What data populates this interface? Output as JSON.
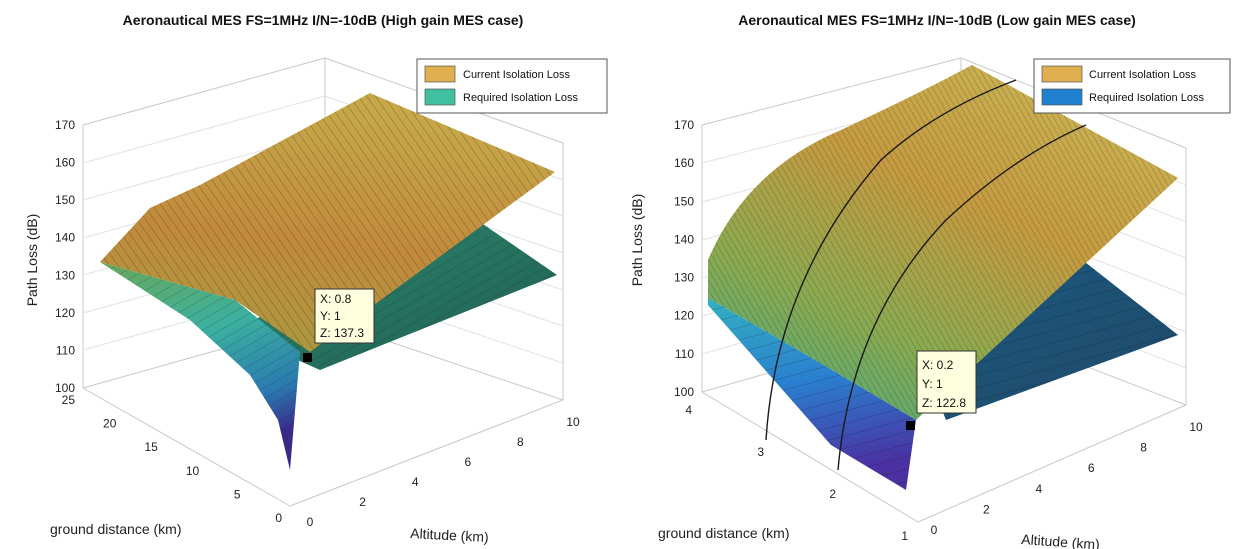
{
  "chart_data": [
    {
      "type": "surface",
      "title": "Aeronautical MES FS=1MHz  I/N=-10dB (High gain MES case)",
      "xlabel": "Altitude (km)",
      "ylabel": "ground distance (km)",
      "zlabel": "Path Loss (dB)",
      "x_ticks": [
        "0",
        "2",
        "4",
        "6",
        "8",
        "10"
      ],
      "y_ticks": [
        "0",
        "5",
        "10",
        "15",
        "20",
        "25"
      ],
      "z_ticks": [
        "100",
        "110",
        "120",
        "130",
        "140",
        "150",
        "160",
        "170"
      ],
      "xlim": [
        0,
        10
      ],
      "ylim": [
        0,
        25
      ],
      "zlim": [
        100,
        170
      ],
      "legend_position": "top-right",
      "series": [
        {
          "name": "Current Isolation Loss",
          "color": "#e0b050"
        },
        {
          "name": "Required Isolation Loss",
          "color": "#40c0a0"
        }
      ],
      "datatip": {
        "lines": [
          "X: 0.8",
          "Y: 1",
          "Z: 137.3"
        ],
        "x": 0.8,
        "y": 1,
        "z": 137.3
      }
    },
    {
      "type": "surface",
      "title": "Aeronautical MES FS=1MHz  I/N=-10dB (Low gain MES case)",
      "xlabel": "Altitude (km)",
      "ylabel": "ground distance (km)",
      "zlabel": "Path Loss (dB)",
      "x_ticks": [
        "0",
        "2",
        "4",
        "6",
        "8",
        "10"
      ],
      "y_ticks": [
        "1",
        "2",
        "3",
        "4"
      ],
      "z_ticks": [
        "100",
        "110",
        "120",
        "130",
        "140",
        "150",
        "160",
        "170"
      ],
      "xlim": [
        0,
        10
      ],
      "ylim": [
        1,
        4
      ],
      "zlim": [
        100,
        170
      ],
      "legend_position": "top-right",
      "series": [
        {
          "name": "Current Isolation Loss",
          "color": "#e0b050"
        },
        {
          "name": "Required Isolation Loss",
          "color": "#2080d0"
        }
      ],
      "datatip": {
        "lines": [
          "X: 0.2",
          "Y: 1",
          "Z: 122.8"
        ],
        "x": 0.2,
        "y": 1,
        "z": 122.8
      }
    }
  ]
}
